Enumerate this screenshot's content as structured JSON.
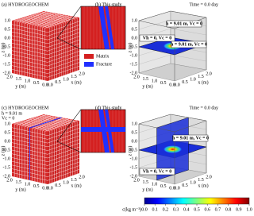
{
  "panels": [
    {
      "title": "(a) HYDROGEOCHEM",
      "z_label": "z (m)",
      "y_label": "y (m)",
      "x_label": "x (m)",
      "z_ticks": [
        "1.0",
        "0.5",
        "0.0",
        "-0.5",
        "-1.0",
        "-1.5",
        "-2.0"
      ],
      "y_ticks": [
        "2.0",
        "1.5",
        "1.0",
        "0.5",
        "0.0"
      ],
      "x_ticks": [
        "0.0",
        "0.5",
        "1.0",
        "1.5",
        "2.0"
      ]
    },
    {
      "title": "(b) This study",
      "time": "Time = 0.0 day",
      "plane_labels": [
        "h = 9.01 m, Vc = 0",
        "Vh = 0, Vc = 0",
        "h = 9.01 m, Vc = 0"
      ],
      "z_label": "z (m)",
      "y_label": "y (m)",
      "x_label": "x (m)",
      "z_ticks": [
        "1.0",
        "0.5",
        "0.0",
        "-0.5",
        "-1.0",
        "-1.5",
        "-2.0"
      ],
      "y_ticks": [
        "2.0",
        "1.5",
        "1.0",
        "0.5",
        "0.0"
      ],
      "x_ticks": [
        "0.0",
        "0.5",
        "1.0",
        "1.5",
        "2.0"
      ]
    },
    {
      "title": "(c) HYDROGEOCHEM",
      "notes": [
        "h = 9.01 m",
        "Vc = 0"
      ],
      "z_label": "z (m)",
      "y_label": "y (m)",
      "x_label": "x (m)",
      "z_ticks": [
        "1.0",
        "0.5",
        "0.0",
        "-0.5",
        "-1.0",
        "-1.5",
        "-2.0"
      ],
      "y_ticks": [
        "2.0",
        "1.5",
        "1.0",
        "0.5",
        "0.0"
      ],
      "x_ticks": [
        "0.0",
        "0.5",
        "1.0",
        "1.5",
        "2.0"
      ]
    },
    {
      "title": "(d) This study",
      "time": "Time = 0.0 day",
      "plane_labels": [
        "h = 9.01 m, Vc = 0",
        "Vh = 0, Vc = 0"
      ],
      "z_label": "z (m)",
      "y_label": "y (m)",
      "x_label": "x (m)",
      "z_ticks": [
        "1.0",
        "0.5",
        "0.0",
        "-0.5",
        "-1.0",
        "-1.5",
        "-2.0"
      ],
      "y_ticks": [
        "2.0",
        "1.5",
        "1.0",
        "0.5",
        "0.0"
      ],
      "x_ticks": [
        "0.0",
        "0.5",
        "1.0",
        "1.5",
        "2.0"
      ]
    }
  ],
  "legend": [
    "Matrix",
    "Fracture"
  ],
  "colorbar": {
    "label": "c(kg m⁻³)",
    "ticks": [
      "0.0",
      "0.1",
      "0.2",
      "0.3",
      "0.4",
      "0.5",
      "0.6",
      "0.7",
      "0.8",
      "0.9",
      "1.0"
    ]
  }
}
